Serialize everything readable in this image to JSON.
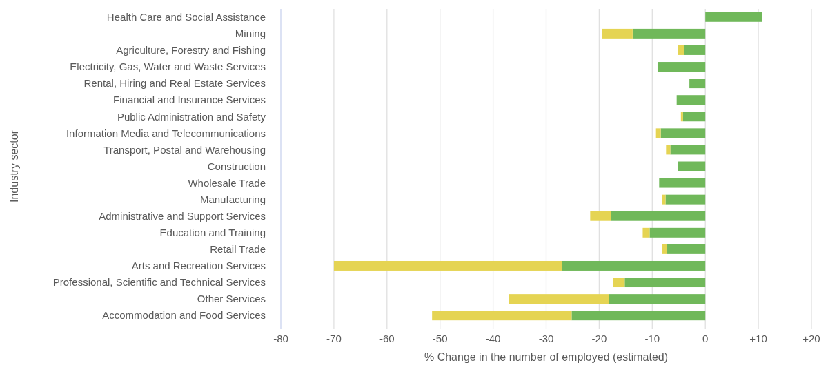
{
  "chart_data": {
    "type": "bar",
    "orientation": "horizontal",
    "stacked": true,
    "ylabel": "Industry sector",
    "xlabel": "% Change in the number of employed (estimated)",
    "categories": [
      "Health Care and Social Assistance",
      "Mining",
      "Agriculture, Forestry and Fishing",
      "Electricity, Gas, Water and Waste Services",
      "Rental, Hiring and Real Estate Services",
      "Financial and Insurance Services",
      "Public Administration and Safety",
      "Information Media and Telecommunications",
      "Transport, Postal and Warehousing",
      "Construction",
      "Wholesale Trade",
      "Manufacturing",
      "Administrative and Support Services",
      "Education and Training",
      "Retail Trade",
      "Arts and Recreation Services",
      "Professional, Scientific and Technical Services",
      "Other Services",
      "Accommodation and Food Services"
    ],
    "series": [
      {
        "color": "#70b85a",
        "values": [
          10.7,
          -13.7,
          -4.0,
          -9.0,
          -3.0,
          -5.4,
          -4.2,
          -8.4,
          -6.6,
          -5.1,
          -8.7,
          -7.5,
          -17.8,
          -10.5,
          -7.3,
          -27.0,
          -15.2,
          -18.2,
          -25.2
        ]
      },
      {
        "color": "#e5d453",
        "values": [
          null,
          -5.8,
          -1.1,
          null,
          null,
          null,
          -0.4,
          -0.9,
          -0.8,
          null,
          null,
          -0.6,
          -3.9,
          -1.3,
          -0.8,
          -43.0,
          -2.2,
          -18.8,
          -26.3
        ]
      }
    ],
    "xlim": [
      -80,
      20
    ],
    "xticks": [
      -80,
      -70,
      -60,
      -50,
      -40,
      -30,
      -20,
      -10,
      0,
      {
        "value": 10,
        "label": "+10"
      },
      {
        "value": 20,
        "label": "+20"
      }
    ],
    "grid": "x"
  }
}
